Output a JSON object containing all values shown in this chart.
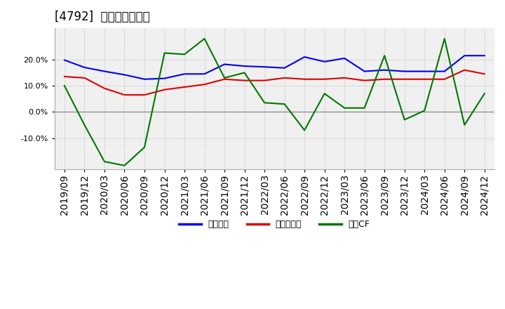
{
  "title": "[4792]  マージンの推移",
  "title_fontsize": 12,
  "background_color": "#ffffff",
  "plot_background_color": "#f0f0f0",
  "grid_color": "#bbbbbb",
  "xlabels": [
    "2019/09",
    "2019/12",
    "2020/03",
    "2020/06",
    "2020/09",
    "2020/12",
    "2021/03",
    "2021/06",
    "2021/09",
    "2021/12",
    "2022/03",
    "2022/06",
    "2022/09",
    "2022/12",
    "2023/03",
    "2023/06",
    "2023/09",
    "2023/12",
    "2024/03",
    "2024/06",
    "2024/09",
    "2024/12"
  ],
  "series_order": [
    "経常利益",
    "当期純利益",
    "営業CF"
  ],
  "series": {
    "経常利益": {
      "color": "#0000ee",
      "values": [
        19.8,
        17.0,
        15.5,
        14.2,
        12.5,
        12.8,
        14.5,
        14.5,
        18.2,
        17.5,
        17.2,
        16.8,
        21.0,
        19.2,
        20.5,
        15.5,
        16.0,
        15.5,
        15.5,
        15.5,
        21.5,
        21.5
      ]
    },
    "当期純利益": {
      "color": "#dd0000",
      "values": [
        13.5,
        13.0,
        9.0,
        6.5,
        6.5,
        8.5,
        9.5,
        10.5,
        12.5,
        12.0,
        12.0,
        13.0,
        12.5,
        12.5,
        13.0,
        12.0,
        12.5,
        12.5,
        12.5,
        12.5,
        16.0,
        14.5
      ]
    },
    "営業CF": {
      "color": "#007700",
      "values": [
        10.0,
        -5.0,
        -19.0,
        -20.5,
        -13.5,
        22.5,
        22.0,
        28.0,
        13.0,
        15.0,
        3.5,
        3.0,
        -7.0,
        7.0,
        1.5,
        1.5,
        21.5,
        -3.0,
        0.5,
        28.0,
        -5.0,
        7.0
      ]
    }
  },
  "ylim": [
    -22,
    32
  ],
  "yticks": [
    -10.0,
    0.0,
    10.0,
    20.0
  ],
  "line_width": 1.5,
  "legend_ncol": 3,
  "legend_fontsize": 9,
  "tick_fontsize": 7.5,
  "ytick_fontsize": 8
}
